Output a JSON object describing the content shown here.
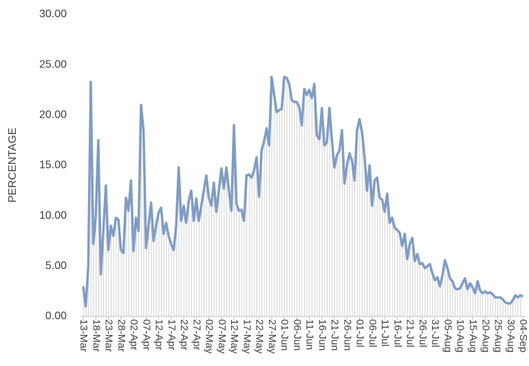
{
  "chart_data": {
    "type": "line",
    "ylabel": "PERCENTAGE",
    "categories": [
      "13-Mar",
      null,
      null,
      null,
      null,
      "18-Mar",
      null,
      null,
      null,
      null,
      "23-Mar",
      null,
      null,
      null,
      null,
      "28-Mar",
      null,
      null,
      null,
      null,
      "02-Apr",
      null,
      null,
      null,
      null,
      "07-Apr",
      null,
      null,
      null,
      null,
      "12-Apr",
      null,
      null,
      null,
      null,
      "17-Apr",
      null,
      null,
      null,
      null,
      "22-Apr",
      null,
      null,
      null,
      null,
      "27-Apr",
      null,
      null,
      null,
      null,
      "02-May",
      null,
      null,
      null,
      null,
      "07-May",
      null,
      null,
      null,
      null,
      "12-May",
      null,
      null,
      null,
      null,
      "17-May",
      null,
      null,
      null,
      null,
      "22-May",
      null,
      null,
      null,
      null,
      "27-May",
      null,
      null,
      null,
      null,
      "01-Jun",
      null,
      null,
      null,
      null,
      "06-Jun",
      null,
      null,
      null,
      null,
      "11-Jun",
      null,
      null,
      null,
      null,
      "16-Jun",
      null,
      null,
      null,
      null,
      "21-Jun",
      null,
      null,
      null,
      null,
      "26-Jun",
      null,
      null,
      null,
      null,
      "01-Jul",
      null,
      null,
      null,
      null,
      "06-Jul",
      null,
      null,
      null,
      null,
      "11-Jul",
      null,
      null,
      null,
      null,
      "16-Jul",
      null,
      null,
      null,
      null,
      "21-Jul",
      null,
      null,
      null,
      null,
      "26-Jul",
      null,
      null,
      null,
      null,
      "31-Jul",
      null,
      null,
      null,
      null,
      "05-Aug",
      null,
      null,
      null,
      null,
      "10-Aug",
      null,
      null,
      null,
      null,
      "15-Aug",
      null,
      null,
      null,
      null,
      "20-Aug",
      null,
      null,
      null,
      null,
      "25-Aug",
      null,
      null,
      null,
      null,
      "30-Aug",
      null,
      null,
      null,
      null,
      "04-Sep"
    ],
    "series": [
      {
        "color": "#7f9cc4",
        "values": [
          3.0,
          1.0,
          5.0,
          23.3,
          7.2,
          10.0,
          17.5,
          4.2,
          8.5,
          13.0,
          6.6,
          9.0,
          8.0,
          9.8,
          9.6,
          6.6,
          6.3,
          11.8,
          10.5,
          13.5,
          6.5,
          9.8,
          8.5,
          21.0,
          18.5,
          6.8,
          9.0,
          11.3,
          7.5,
          9.0,
          10.3,
          10.8,
          8.2,
          9.3,
          8.0,
          7.2,
          6.6,
          9.0,
          14.8,
          9.5,
          11.0,
          9.3,
          11.5,
          12.5,
          9.5,
          11.7,
          9.5,
          11.0,
          12.5,
          14.0,
          11.8,
          11.0,
          13.3,
          10.4,
          12.5,
          14.7,
          12.7,
          14.8,
          12.5,
          10.5,
          19.0,
          11.2,
          10.5,
          10.6,
          9.5,
          14.0,
          14.1,
          13.8,
          14.5,
          15.8,
          11.9,
          16.5,
          17.4,
          18.7,
          17.0,
          23.8,
          22.0,
          20.3,
          20.5,
          20.6,
          23.8,
          23.7,
          23.1,
          21.5,
          21.3,
          21.3,
          20.8,
          19.0,
          22.6,
          22.0,
          22.5,
          21.7,
          23.1,
          18.0,
          17.6,
          20.7,
          17.0,
          17.3,
          20.7,
          17.5,
          14.8,
          16.0,
          16.5,
          18.5,
          13.2,
          15.0,
          16.2,
          15.5,
          13.5,
          18.5,
          19.6,
          18.3,
          15.8,
          12.5,
          15.0,
          11.0,
          13.5,
          13.8,
          11.8,
          11.6,
          10.4,
          12.2,
          9.3,
          9.8,
          8.8,
          8.6,
          8.3,
          7.0,
          8.2,
          5.7,
          7.2,
          7.8,
          5.5,
          6.2,
          5.2,
          5.3,
          4.8,
          5.0,
          5.2,
          4.3,
          3.6,
          3.9,
          3.0,
          4.1,
          5.6,
          4.8,
          3.8,
          3.5,
          2.8,
          2.7,
          2.8,
          3.3,
          3.8,
          2.7,
          3.3,
          2.9,
          2.3,
          3.5,
          2.6,
          2.3,
          2.5,
          2.3,
          2.4,
          2.2,
          1.9,
          1.9,
          1.9,
          1.7,
          1.4,
          1.3,
          1.3,
          1.6,
          2.1,
          1.9,
          2.1,
          2.0
        ]
      }
    ],
    "ylim": [
      0,
      30
    ],
    "yticks": [
      {
        "value": 0,
        "label": "0.00"
      },
      {
        "value": 5,
        "label": "5.00"
      },
      {
        "value": 10,
        "label": "10.00"
      },
      {
        "value": 15,
        "label": "15.00"
      },
      {
        "value": 20,
        "label": "20.00"
      },
      {
        "value": 25,
        "label": "25.00"
      },
      {
        "value": 30,
        "label": "30.00"
      }
    ]
  }
}
